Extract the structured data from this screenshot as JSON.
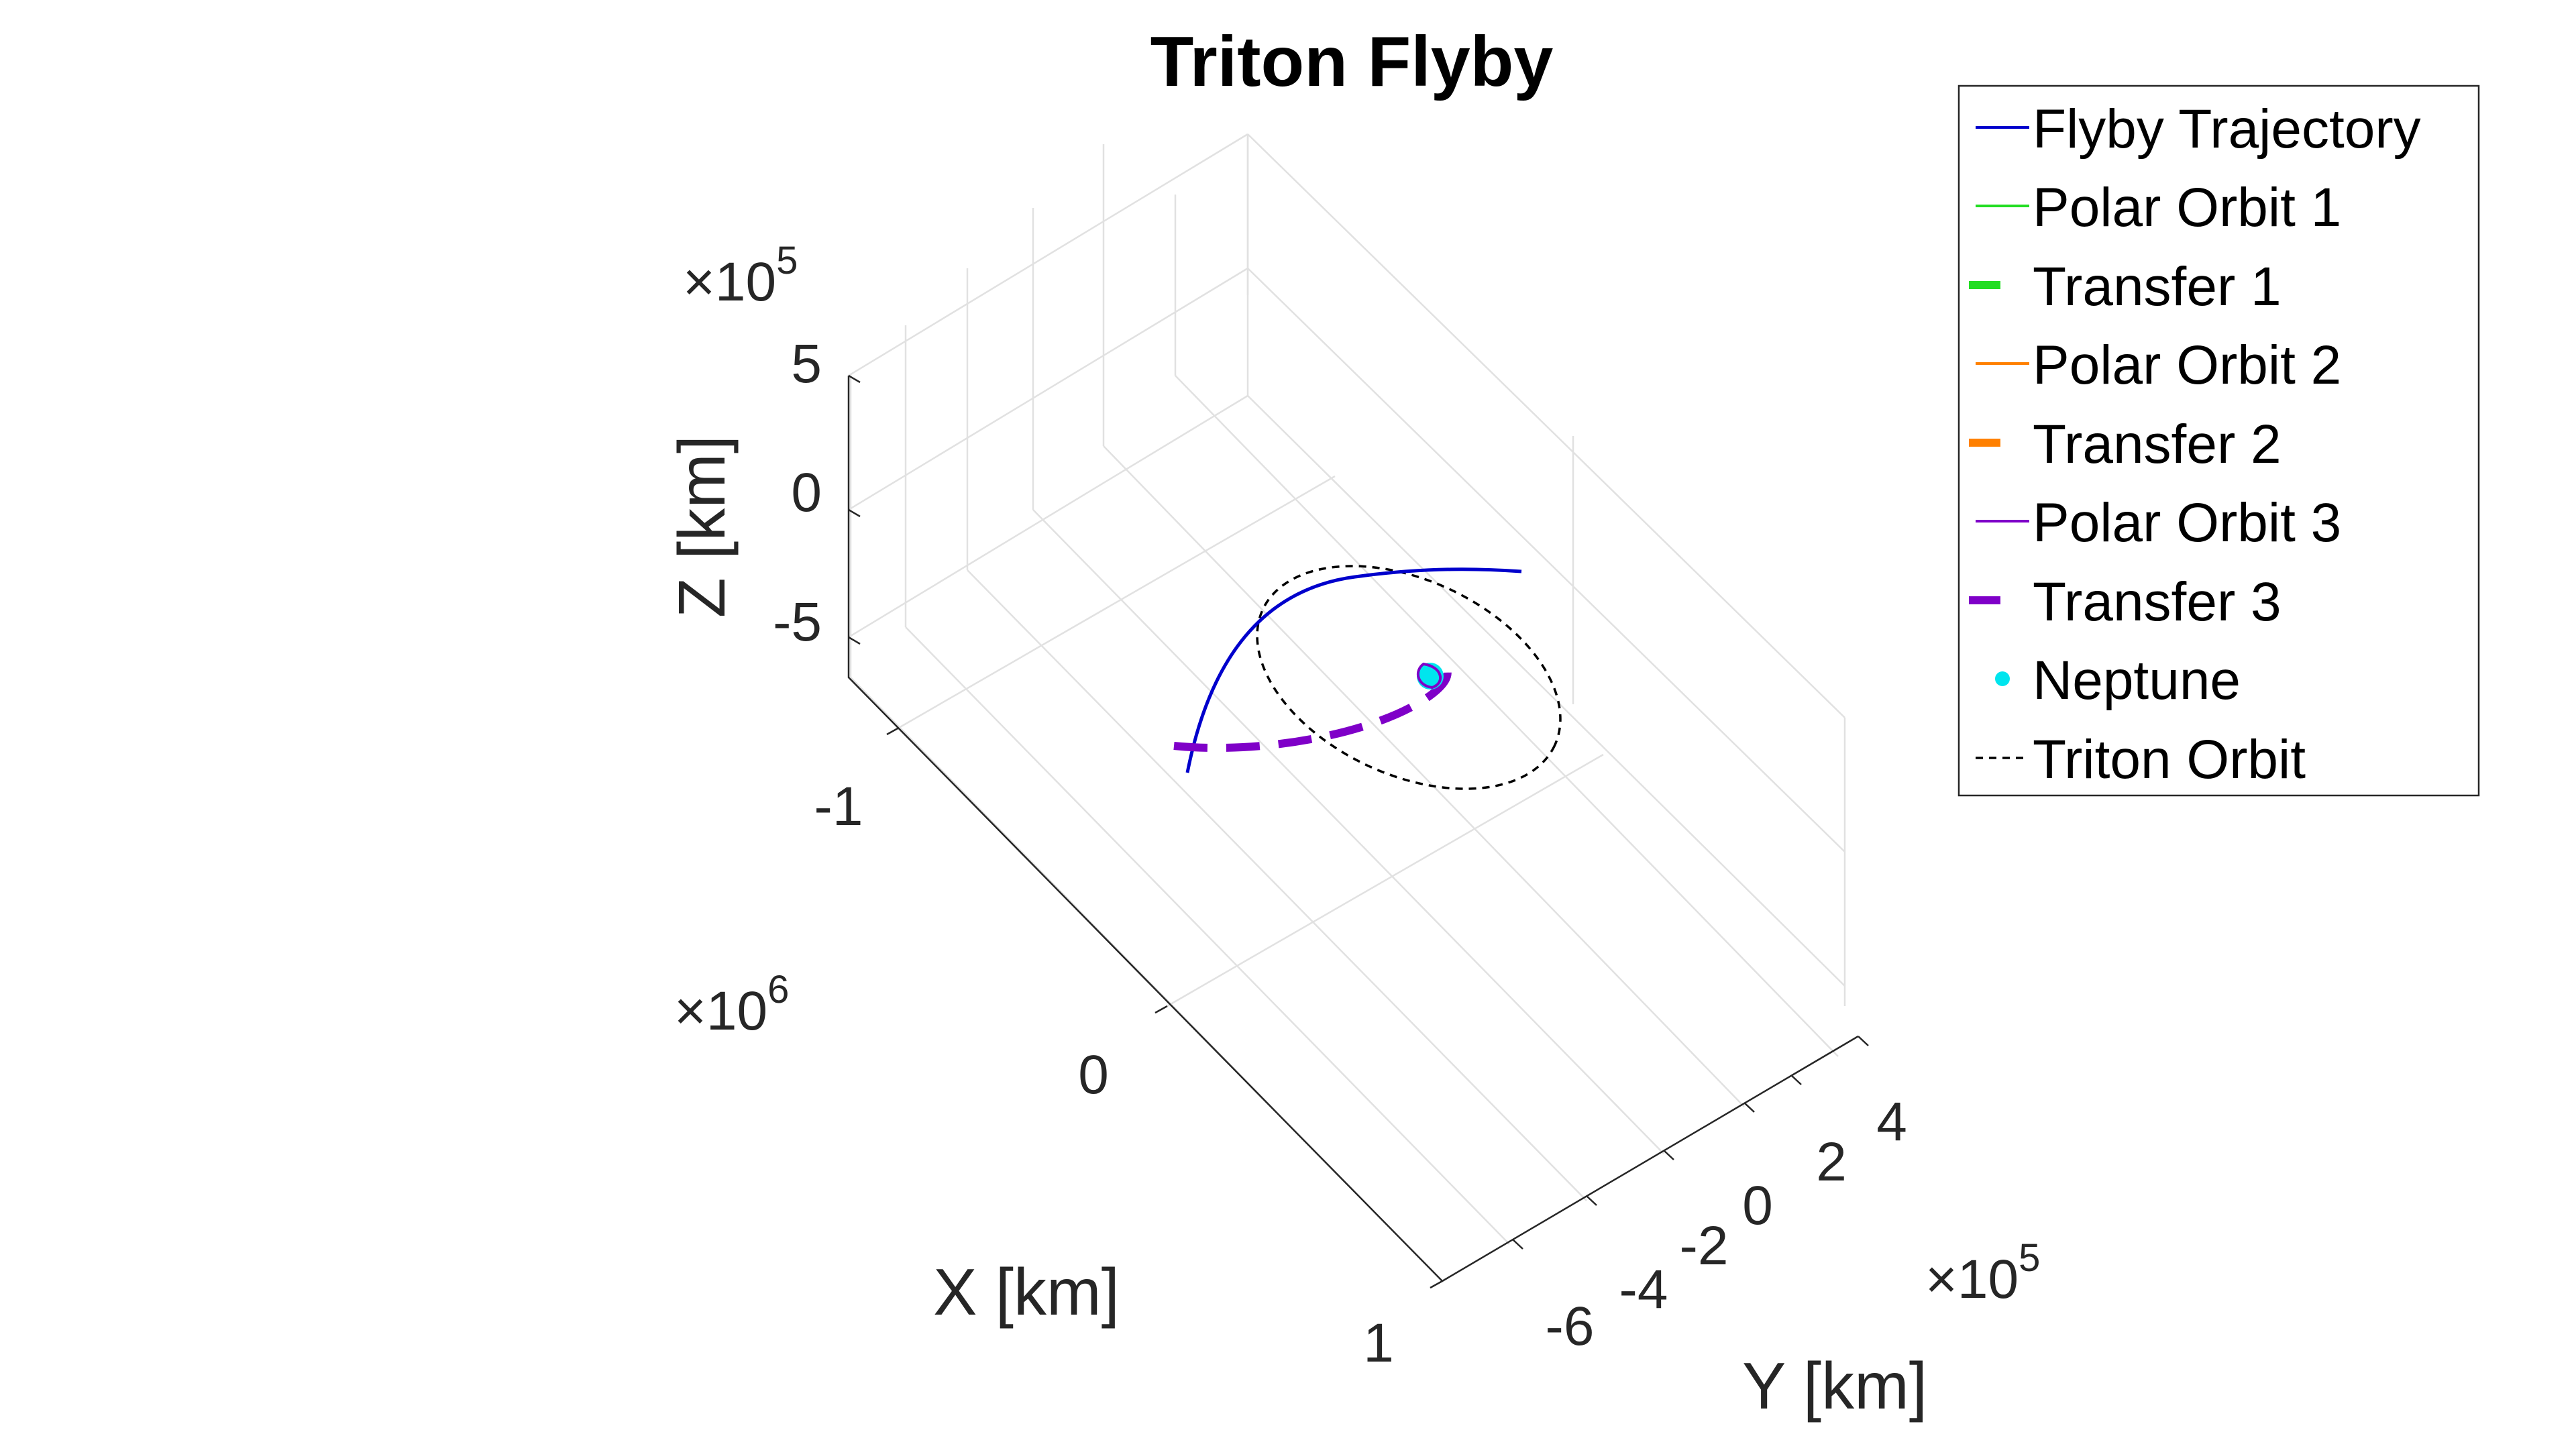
{
  "chart_data": {
    "type": "line",
    "title": "Triton Flyby",
    "xlabel": "X [km]",
    "ylabel": "Y [km]",
    "zlabel": "Z [km]",
    "x_exponent": "6",
    "y_exponent": "5",
    "z_exponent": "5",
    "x_ticks": [
      "-1",
      "0",
      "1"
    ],
    "y_ticks": [
      "-6",
      "-4",
      "-2",
      "0",
      "2",
      "4"
    ],
    "z_ticks": [
      "5",
      "0",
      "-5"
    ],
    "grid": true,
    "legend_position": "top-right, outside axes",
    "legend": [
      {
        "label": "Flyby Trajectory",
        "color": "#0000cc",
        "style": "solid"
      },
      {
        "label": "Polar Orbit 1",
        "color": "#22dd22",
        "style": "solid"
      },
      {
        "label": "Transfer 1",
        "color": "#22dd22",
        "style": "dashed-thick"
      },
      {
        "label": "Polar Orbit 2",
        "color": "#ff8000",
        "style": "solid"
      },
      {
        "label": "Transfer 2",
        "color": "#ff8000",
        "style": "dashed-thick"
      },
      {
        "label": "Polar Orbit 3",
        "color": "#7f00c8",
        "style": "solid"
      },
      {
        "label": "Transfer 3",
        "color": "#7f00c8",
        "style": "dashed-thick"
      },
      {
        "label": "Neptune",
        "color": "#00e5ee",
        "style": "marker"
      },
      {
        "label": "Triton Orbit",
        "color": "#000000",
        "style": "dotted"
      }
    ]
  }
}
